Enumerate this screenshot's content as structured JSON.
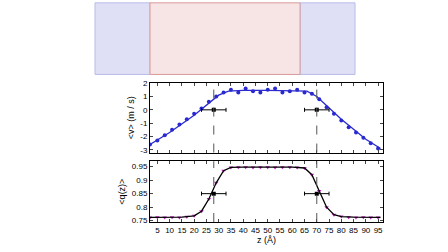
{
  "chart_data": [
    {
      "type": "scatter",
      "ylabel": "<v> (m / s)",
      "xlim": [
        2,
        97
      ],
      "xticks": [
        5,
        10,
        15,
        20,
        25,
        30,
        35,
        40,
        45,
        50,
        55,
        60,
        65,
        70,
        75,
        80,
        85,
        90,
        95
      ],
      "ylim": [
        -3.2,
        2
      ],
      "yticks": [
        -3,
        -2,
        -1,
        0,
        1,
        2
      ],
      "tick_labels": "y",
      "grid": false,
      "vlines": [
        28,
        70
      ],
      "series": [
        {
          "type": "scatter",
          "marker": "circle",
          "color": "#2a2ad0",
          "x": [
            2,
            5,
            8,
            11,
            14,
            17,
            20,
            23,
            26,
            29,
            32,
            35,
            38,
            41,
            44,
            47,
            50,
            53,
            56,
            59,
            62,
            65,
            68,
            71,
            74,
            77,
            80,
            83,
            86,
            89,
            92,
            95
          ],
          "values": [
            -2.6,
            -2.3,
            -1.9,
            -1.5,
            -1.1,
            -0.7,
            -0.3,
            0.1,
            0.6,
            1.0,
            1.3,
            1.5,
            1.3,
            1.6,
            1.4,
            1.3,
            1.5,
            1.6,
            1.3,
            1.4,
            1.5,
            1.3,
            1.2,
            0.8,
            0.2,
            -0.3,
            -0.8,
            -1.3,
            -1.7,
            -2.1,
            -2.5,
            -2.9
          ]
        },
        {
          "type": "line",
          "line_style": "solid",
          "color": "#2a2ad0",
          "x": [
            2,
            10,
            20,
            26,
            30,
            34,
            40,
            50,
            60,
            66,
            70,
            74,
            80,
            90,
            96
          ],
          "values": [
            -2.6,
            -1.7,
            -0.4,
            0.5,
            1.1,
            1.4,
            1.45,
            1.45,
            1.45,
            1.4,
            1.0,
            0.3,
            -0.7,
            -2.2,
            -2.9
          ]
        },
        {
          "type": "errorbar",
          "marker": "square",
          "color": "#000000",
          "x": [
            28,
            70
          ],
          "values": [
            0,
            0
          ],
          "x_error": [
            5,
            5
          ]
        }
      ]
    },
    {
      "type": "scatter",
      "xlabel": "z (Å)",
      "ylabel": "<q(z)>",
      "xlim": [
        2,
        97
      ],
      "xticks": [
        5,
        10,
        15,
        20,
        25,
        30,
        35,
        40,
        45,
        50,
        55,
        60,
        65,
        70,
        75,
        80,
        85,
        90,
        95
      ],
      "ylim": [
        0.745,
        0.97
      ],
      "yticks": [
        0.75,
        0.8,
        0.85,
        0.9,
        0.95
      ],
      "grid": false,
      "vlines": [
        28,
        70
      ],
      "series": [
        {
          "type": "scatter",
          "marker": "triangle-down",
          "color": "#c020c0",
          "x": [
            2,
            5,
            8,
            11,
            14,
            17,
            20,
            23,
            26,
            29,
            32,
            35,
            38,
            41,
            44,
            47,
            50,
            53,
            56,
            59,
            62,
            65,
            68,
            71,
            74,
            77,
            80,
            83,
            86,
            89,
            92,
            95
          ],
          "values": [
            0.762,
            0.763,
            0.762,
            0.763,
            0.762,
            0.764,
            0.768,
            0.785,
            0.83,
            0.89,
            0.935,
            0.947,
            0.948,
            0.948,
            0.947,
            0.948,
            0.948,
            0.947,
            0.948,
            0.948,
            0.947,
            0.945,
            0.92,
            0.86,
            0.8,
            0.772,
            0.765,
            0.763,
            0.762,
            0.763,
            0.762,
            0.762
          ]
        },
        {
          "type": "line",
          "line_style": "solid",
          "color": "#000000",
          "x": [
            2,
            15,
            20,
            23,
            26,
            29,
            32,
            35,
            40,
            60,
            65,
            68,
            71,
            74,
            77,
            80,
            85,
            96
          ],
          "values": [
            0.762,
            0.763,
            0.768,
            0.785,
            0.83,
            0.89,
            0.935,
            0.947,
            0.948,
            0.948,
            0.945,
            0.92,
            0.86,
            0.8,
            0.772,
            0.765,
            0.763,
            0.762
          ]
        },
        {
          "type": "errorbar",
          "marker": "square",
          "color": "#000000",
          "x": [
            28,
            70
          ],
          "values": [
            0.85,
            0.85
          ],
          "x_error": [
            5,
            5
          ]
        }
      ]
    }
  ]
}
